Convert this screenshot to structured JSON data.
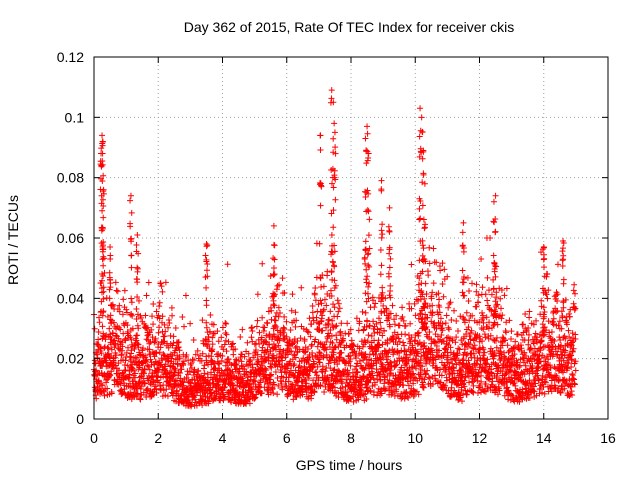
{
  "chart_data": {
    "type": "scatter",
    "title": "Day 362 of 2015, Rate Of TEC Index for receiver ckis",
    "xlabel": "GPS time / hours",
    "ylabel": "ROTI / TECUs",
    "xlim": [
      0,
      16
    ],
    "ylim": [
      0,
      0.12
    ],
    "xticks": [
      "0",
      "2",
      "4",
      "6",
      "8",
      "10",
      "12",
      "14",
      "16"
    ],
    "yticks": [
      "0",
      "0.02",
      "0.04",
      "0.06",
      "0.08",
      "0.1",
      "0.12"
    ],
    "grid": true,
    "marker": "+",
    "series": [
      {
        "name": "ROTI",
        "color": "#ff0000",
        "x_range": [
          0,
          15
        ],
        "baseline_mean": 0.017,
        "note": "dense scatter of several thousand points between 0.003 and 0.05 TECUs",
        "peaks": [
          {
            "x": 0.25,
            "y": 0.094
          },
          {
            "x": 0.27,
            "y": 0.092
          },
          {
            "x": 0.22,
            "y": 0.088
          },
          {
            "x": 0.3,
            "y": 0.076
          },
          {
            "x": 1.15,
            "y": 0.074
          },
          {
            "x": 0.5,
            "y": 0.057
          },
          {
            "x": 1.35,
            "y": 0.061
          },
          {
            "x": 3.5,
            "y": 0.058
          },
          {
            "x": 5.6,
            "y": 0.064
          },
          {
            "x": 7.05,
            "y": 0.094
          },
          {
            "x": 7.4,
            "y": 0.109
          },
          {
            "x": 7.45,
            "y": 0.105
          },
          {
            "x": 7.5,
            "y": 0.095
          },
          {
            "x": 8.5,
            "y": 0.097
          },
          {
            "x": 8.45,
            "y": 0.093
          },
          {
            "x": 8.55,
            "y": 0.088
          },
          {
            "x": 8.95,
            "y": 0.079
          },
          {
            "x": 9.2,
            "y": 0.07
          },
          {
            "x": 10.15,
            "y": 0.103
          },
          {
            "x": 10.2,
            "y": 0.1
          },
          {
            "x": 10.25,
            "y": 0.089
          },
          {
            "x": 10.3,
            "y": 0.078
          },
          {
            "x": 11.5,
            "y": 0.065
          },
          {
            "x": 12.5,
            "y": 0.074
          },
          {
            "x": 12.45,
            "y": 0.072
          },
          {
            "x": 14.0,
            "y": 0.057
          },
          {
            "x": 14.6,
            "y": 0.059
          }
        ]
      }
    ]
  }
}
